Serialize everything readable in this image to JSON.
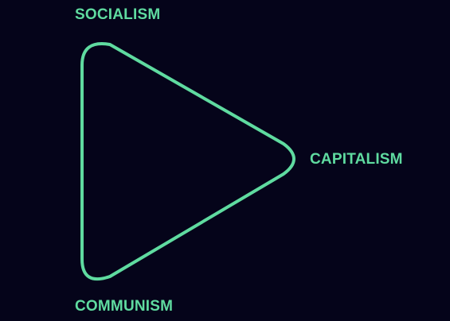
{
  "diagram": {
    "vertices": {
      "top": {
        "label": "SOCIALISM"
      },
      "right": {
        "label": "CAPITALISM"
      },
      "bottom": {
        "label": "COMMUNISM"
      }
    }
  },
  "colors": {
    "background": "#05041a",
    "accent": "#5fdba0"
  }
}
